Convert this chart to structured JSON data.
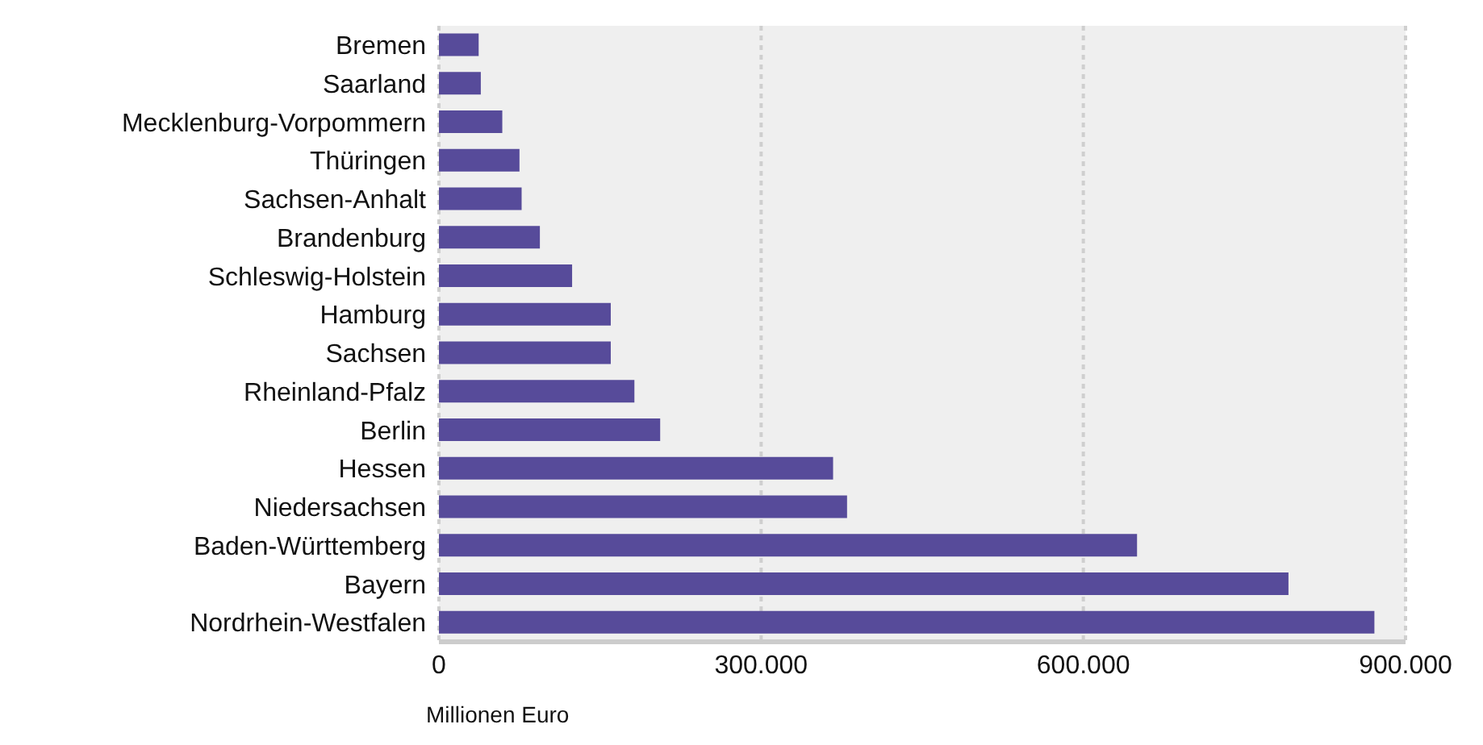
{
  "chart_data": {
    "type": "bar",
    "orientation": "horizontal",
    "xlabel": "Millionen Euro",
    "categories": [
      "Bremen",
      "Saarland",
      "Mecklenburg-Vorpommern",
      "Thüringen",
      "Sachsen-Anhalt",
      "Brandenburg",
      "Schleswig-Holstein",
      "Hamburg",
      "Sachsen",
      "Rheinland-Pfalz",
      "Berlin",
      "Hessen",
      "Niedersachsen",
      "Baden-Württemberg",
      "Bayern",
      "Nordrhein-Westfalen"
    ],
    "values": [
      37000,
      39000,
      59000,
      75000,
      77000,
      94000,
      124000,
      160000,
      160000,
      182000,
      206000,
      367000,
      380000,
      650000,
      791000,
      871000
    ],
    "color": "#574b9a",
    "xlim": [
      0,
      900000
    ],
    "xticks": [
      0,
      {
        "value": 300000,
        "label": "300.000"
      },
      {
        "value": 600000,
        "label": "600.000"
      },
      {
        "value": 900000,
        "label": "900.000"
      }
    ],
    "grid": "x"
  }
}
